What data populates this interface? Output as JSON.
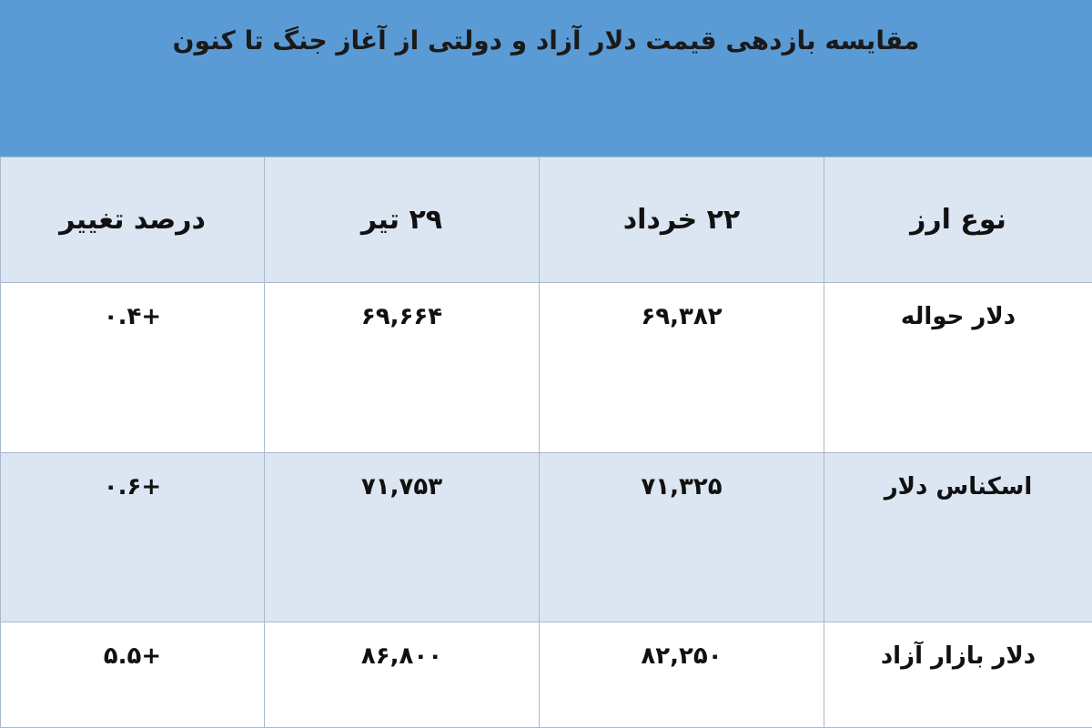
{
  "title": "مقایسه بازدهی قیمت دلار آزاد و دولتی از آغاز جنگ تا کنون",
  "colors": {
    "title_band": "#5b9bd5",
    "header_row": "#dce6f2",
    "alt_row": "#dce6f2"
  },
  "table": {
    "headers": [
      "نوع ارز",
      "۲۲ خرداد",
      "۲۹ تیر",
      "درصد تغییر"
    ],
    "rows": [
      [
        "دلار حواله",
        "۶۹,۳۸۲",
        "۶۹,۶۶۴",
        "+۰.۴"
      ],
      [
        "اسکناس دلار",
        "۷۱,۳۲۵",
        "۷۱,۷۵۳",
        "+۰.۶"
      ],
      [
        "دلار بازار آزاد",
        "۸۲,۲۵۰",
        "۸۶,۸۰۰",
        "+۵.۵"
      ]
    ]
  }
}
